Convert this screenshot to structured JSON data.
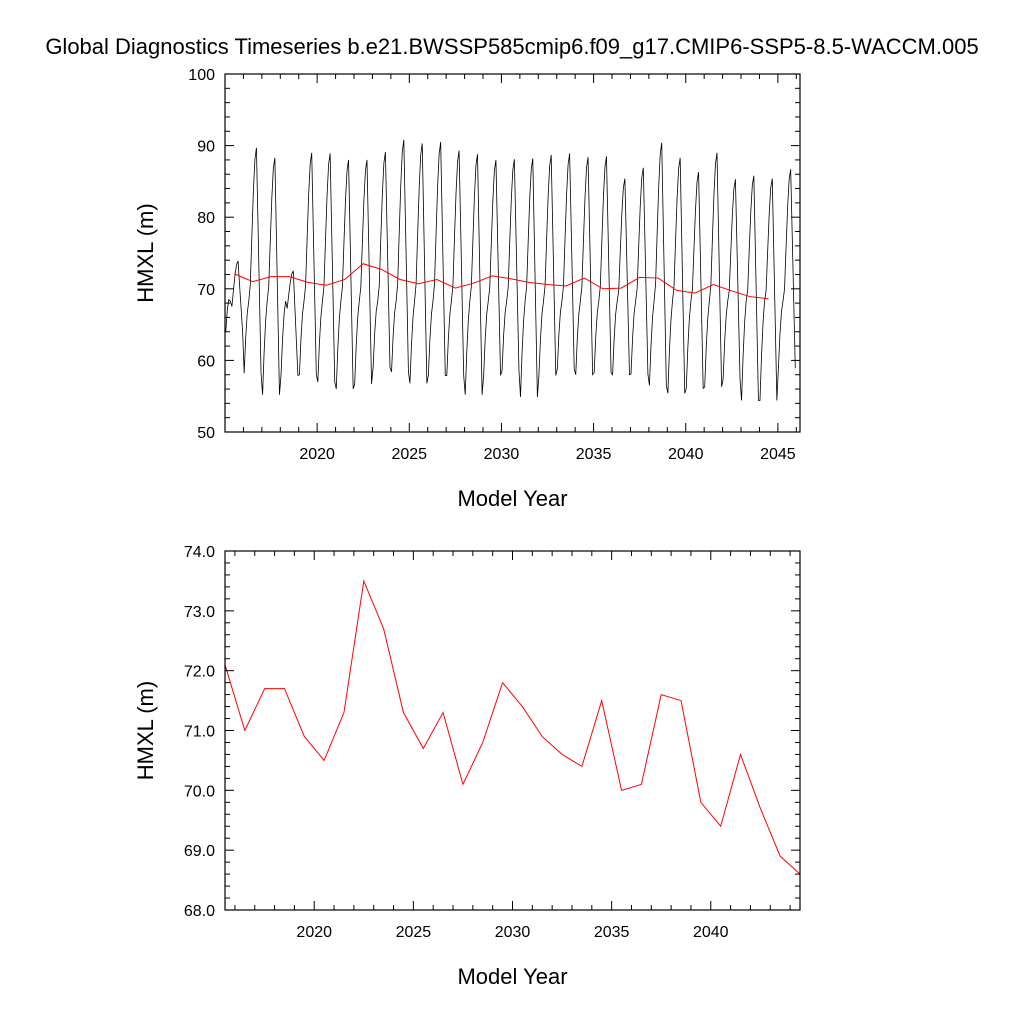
{
  "page_title": "Global Diagnostics Timeseries b.e21.BWSSP585cmip6.f09_g17.CMIP6-SSP5-8.5-WACCM.005",
  "colors": {
    "monthly": "#000000",
    "annual": "#ff0000"
  },
  "chart_data": [
    {
      "type": "line",
      "xlabel": "Model Year",
      "ylabel": "HMXL (m)",
      "xlim": [
        2015,
        2046.2
      ],
      "ylim": [
        50,
        100
      ],
      "xticks": [
        2020,
        2025,
        2030,
        2035,
        2040,
        2045
      ],
      "yticks": [
        50,
        60,
        70,
        80,
        90,
        100
      ],
      "ytick_labels": [
        "50",
        "60",
        "70",
        "80",
        "90",
        "100"
      ],
      "monthly_cycle_peak_month": 8,
      "series": [
        {
          "color": "#000000",
          "style": "monthly",
          "x_start": 2015.04,
          "x_step": 0.0833,
          "annual_peak_max": [
            73.9,
            89.7,
            88.3,
            72.5,
            89.0,
            88.9,
            88.0,
            88.0,
            89.1,
            90.8,
            90.3,
            90.5,
            89.3,
            88.8,
            88.0,
            88.1,
            88.2,
            88.7,
            88.9,
            88.4,
            88.5,
            85.4,
            86.9,
            90.4,
            88.3,
            86.3,
            89.0,
            85.3,
            85.8,
            85.4,
            86.7
          ],
          "annual_min": [
            64.0,
            58.2,
            55.2,
            57.9,
            58.0,
            57.0,
            56.0,
            56.7,
            59.0,
            58.4,
            56.8,
            57.9,
            57.9,
            55.2,
            57.9,
            58.6,
            54.9,
            57.9,
            58.8,
            58.0,
            58.3,
            58.0,
            58.1,
            56.5,
            55.4,
            56.1,
            56.3,
            57.4,
            54.4,
            54.4,
            58.9
          ]
        },
        {
          "color": "#ff0000",
          "style": "annual",
          "x": [
            2015.5,
            2016.5,
            2017.5,
            2018.5,
            2019.5,
            2020.5,
            2021.5,
            2022.5,
            2023.5,
            2024.5,
            2025.5,
            2026.5,
            2027.5,
            2028.5,
            2029.5,
            2030.5,
            2031.5,
            2032.5,
            2033.5,
            2034.5,
            2035.5,
            2036.5,
            2037.5,
            2038.5,
            2039.5,
            2040.5,
            2041.5,
            2042.5,
            2043.5,
            2044.5
          ],
          "values": [
            72.1,
            71.0,
            71.7,
            71.7,
            70.9,
            70.5,
            71.3,
            73.5,
            72.7,
            71.3,
            70.7,
            71.3,
            70.1,
            70.8,
            71.8,
            71.4,
            70.9,
            70.6,
            70.4,
            71.5,
            70.0,
            70.1,
            71.6,
            71.5,
            69.8,
            69.4,
            70.6,
            69.7,
            68.9,
            68.6
          ]
        }
      ]
    },
    {
      "type": "line",
      "xlabel": "Model Year",
      "ylabel": "HMXL (m)",
      "xlim": [
        2015.5,
        2044.5
      ],
      "ylim": [
        68.0,
        74.0
      ],
      "xticks": [
        2020,
        2025,
        2030,
        2035,
        2040
      ],
      "yticks": [
        68,
        69,
        70,
        71,
        72,
        73,
        74
      ],
      "ytick_labels": [
        "68.0",
        "69.0",
        "70.0",
        "71.0",
        "72.0",
        "73.0",
        "74.0"
      ],
      "series": [
        {
          "color": "#ff0000",
          "x": [
            2015.5,
            2016.5,
            2017.5,
            2018.5,
            2019.5,
            2020.5,
            2021.5,
            2022.5,
            2023.5,
            2024.5,
            2025.5,
            2026.5,
            2027.5,
            2028.5,
            2029.5,
            2030.5,
            2031.5,
            2032.5,
            2033.5,
            2034.5,
            2035.5,
            2036.5,
            2037.5,
            2038.5,
            2039.5,
            2040.5,
            2041.5,
            2042.5,
            2043.5,
            2044.5
          ],
          "values": [
            72.1,
            71.0,
            71.7,
            71.7,
            70.9,
            70.5,
            71.3,
            73.5,
            72.7,
            71.3,
            70.7,
            71.3,
            70.1,
            70.8,
            71.8,
            71.4,
            70.9,
            70.6,
            70.4,
            71.5,
            70.0,
            70.1,
            71.6,
            71.5,
            69.8,
            69.4,
            70.6,
            69.7,
            68.9,
            68.6
          ]
        }
      ]
    }
  ]
}
